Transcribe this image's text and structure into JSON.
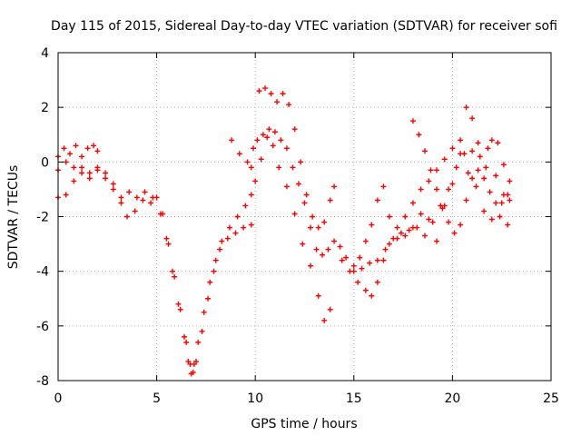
{
  "chart_data": {
    "type": "scatter",
    "title": "Day 115 of 2015, Sidereal Day-to-day VTEC variation (SDTVAR) for receiver sofi",
    "xlabel": "GPS time / hours",
    "ylabel": "SDTVAR / TECUs",
    "xlim": [
      0,
      25
    ],
    "ylim": [
      -8,
      4
    ],
    "xticks": [
      "0",
      "5",
      "10",
      "15",
      "20",
      "25"
    ],
    "yticks": [
      "4",
      "2",
      "0",
      "-2",
      "-4",
      "-6",
      "-8"
    ],
    "grid": true,
    "legend": "none",
    "marker": "+",
    "color": "#ff0000",
    "series": [
      {
        "points": [
          [
            0,
            0.2
          ],
          [
            0.3,
            0.5
          ],
          [
            0.6,
            0.3
          ],
          [
            0.9,
            0.6
          ],
          [
            1.2,
            0.2
          ],
          [
            1.5,
            0.5
          ],
          [
            1.8,
            0.6
          ],
          [
            2.0,
            0.4
          ]
        ]
      },
      {
        "points": [
          [
            0,
            -0.3
          ],
          [
            0.4,
            0.0
          ],
          [
            0.8,
            -0.2
          ],
          [
            1.2,
            -0.4
          ],
          [
            1.6,
            -0.6
          ],
          [
            2.0,
            -0.3
          ],
          [
            2.4,
            -0.6
          ],
          [
            2.8,
            -1.0
          ],
          [
            3.2,
            -1.3
          ],
          [
            3.6,
            -1.1
          ],
          [
            4.0,
            -1.3
          ],
          [
            4.4,
            -1.1
          ],
          [
            4.8,
            -1.3
          ],
          [
            5.2,
            -1.9
          ],
          [
            5.5,
            -2.8
          ],
          [
            5.8,
            -4.0
          ],
          [
            6.1,
            -5.2
          ],
          [
            6.4,
            -6.4
          ],
          [
            6.6,
            -7.3
          ],
          [
            6.75,
            -7.75
          ],
          [
            6.9,
            -7.4
          ],
          [
            7.1,
            -6.6
          ],
          [
            7.4,
            -5.5
          ],
          [
            7.7,
            -4.4
          ],
          [
            8.0,
            -3.6
          ],
          [
            8.3,
            -2.9
          ],
          [
            8.7,
            -2.4
          ],
          [
            9.1,
            -2.0
          ],
          [
            9.5,
            -1.6
          ],
          [
            9.8,
            -1.2
          ],
          [
            10.0,
            -0.7
          ],
          [
            10.3,
            0.1
          ],
          [
            10.6,
            0.9
          ],
          [
            10.9,
            0.6
          ],
          [
            11.2,
            -0.2
          ],
          [
            11.6,
            -0.9
          ],
          [
            12.0,
            -1.9
          ],
          [
            12.4,
            -3.0
          ],
          [
            12.8,
            -3.8
          ],
          [
            13.2,
            -4.9
          ],
          [
            13.5,
            -5.8
          ],
          [
            13.8,
            -5.4
          ]
        ]
      },
      {
        "points": [
          [
            0,
            -1.3
          ],
          [
            0.4,
            -1.2
          ],
          [
            0.8,
            -0.7
          ],
          [
            1.2,
            -0.2
          ],
          [
            1.6,
            -0.4
          ],
          [
            2.0,
            -0.2
          ],
          [
            2.4,
            -0.4
          ],
          [
            2.8,
            -0.8
          ],
          [
            3.2,
            -1.5
          ],
          [
            3.5,
            -2.0
          ],
          [
            3.9,
            -1.8
          ],
          [
            4.3,
            -1.4
          ],
          [
            4.7,
            -1.5
          ],
          [
            5.0,
            -1.3
          ],
          [
            5.3,
            -1.9
          ],
          [
            5.6,
            -3.0
          ],
          [
            5.9,
            -4.2
          ],
          [
            6.2,
            -5.4
          ],
          [
            6.5,
            -6.6
          ],
          [
            6.7,
            -7.4
          ],
          [
            6.85,
            -7.7
          ],
          [
            7.0,
            -7.3
          ],
          [
            7.3,
            -6.2
          ],
          [
            7.6,
            -5.0
          ],
          [
            7.9,
            -4.0
          ],
          [
            8.2,
            -3.2
          ],
          [
            8.6,
            -2.8
          ],
          [
            9.0,
            -2.6
          ],
          [
            9.4,
            -2.4
          ],
          [
            9.8,
            -2.3
          ]
        ]
      },
      {
        "points": [
          [
            8.8,
            0.8
          ],
          [
            9.2,
            0.3
          ],
          [
            9.6,
            0.0
          ],
          [
            9.9,
            0.5
          ],
          [
            10.2,
            2.6
          ],
          [
            10.5,
            2.7
          ],
          [
            10.8,
            2.5
          ],
          [
            11.1,
            2.2
          ],
          [
            11.4,
            2.5
          ],
          [
            11.7,
            2.1
          ],
          [
            12.0,
            1.2
          ],
          [
            12.3,
            0.0
          ],
          [
            12.6,
            -1.2
          ],
          [
            12.9,
            -2.0
          ],
          [
            13.2,
            -2.4
          ],
          [
            13.5,
            -2.2
          ],
          [
            13.8,
            -1.4
          ],
          [
            14.0,
            -0.9
          ]
        ]
      },
      {
        "points": [
          [
            9.8,
            -0.2
          ],
          [
            10.1,
            0.8
          ],
          [
            10.4,
            1.0
          ],
          [
            10.7,
            1.2
          ],
          [
            11.0,
            1.1
          ],
          [
            11.3,
            0.8
          ],
          [
            11.6,
            0.5
          ],
          [
            11.9,
            -0.2
          ],
          [
            12.2,
            -0.8
          ],
          [
            12.5,
            -1.5
          ],
          [
            12.8,
            -2.4
          ],
          [
            13.1,
            -3.2
          ],
          [
            13.4,
            -3.4
          ],
          [
            13.7,
            -3.2
          ],
          [
            14.0,
            -2.9
          ],
          [
            14.3,
            -3.1
          ],
          [
            14.6,
            -3.5
          ],
          [
            15.0,
            -3.8
          ],
          [
            15.4,
            -3.9
          ],
          [
            15.8,
            -3.7
          ],
          [
            16.2,
            -3.6
          ],
          [
            16.6,
            -3.2
          ],
          [
            17.0,
            -2.8
          ],
          [
            17.4,
            -2.6
          ],
          [
            17.8,
            -2.5
          ],
          [
            18.2,
            -2.4
          ],
          [
            18.6,
            -2.7
          ],
          [
            19.0,
            -2.2
          ],
          [
            19.4,
            -1.6
          ],
          [
            19.8,
            -1.0
          ],
          [
            20.2,
            -0.2
          ],
          [
            20.6,
            0.3
          ],
          [
            21.0,
            0.4
          ],
          [
            21.4,
            0.2
          ],
          [
            21.8,
            0.5
          ],
          [
            22.2,
            -0.5
          ],
          [
            22.6,
            -1.2
          ],
          [
            22.9,
            -1.4
          ]
        ]
      },
      {
        "points": [
          [
            14.4,
            -3.6
          ],
          [
            14.8,
            -4.0
          ],
          [
            15.2,
            -4.4
          ],
          [
            15.6,
            -4.7
          ],
          [
            15.9,
            -4.9
          ],
          [
            16.2,
            -4.4
          ],
          [
            16.5,
            -3.6
          ],
          [
            16.8,
            -3.0
          ],
          [
            17.2,
            -2.4
          ],
          [
            17.6,
            -2.0
          ],
          [
            18.0,
            -1.5
          ],
          [
            18.4,
            -1.0
          ],
          [
            18.8,
            -0.7
          ],
          [
            19.2,
            -0.3
          ],
          [
            19.6,
            0.1
          ],
          [
            20.0,
            0.5
          ],
          [
            20.4,
            0.3
          ],
          [
            20.8,
            -0.4
          ],
          [
            21.2,
            -0.9
          ],
          [
            21.6,
            -1.8
          ],
          [
            22.0,
            -2.1
          ],
          [
            22.4,
            -2.0
          ],
          [
            22.8,
            -2.3
          ]
        ]
      },
      {
        "points": [
          [
            15.0,
            -4.0
          ],
          [
            15.3,
            -3.5
          ],
          [
            15.6,
            -2.9
          ],
          [
            15.9,
            -2.3
          ],
          [
            16.2,
            -1.4
          ],
          [
            16.5,
            -0.9
          ],
          [
            16.8,
            -2.0
          ],
          [
            17.2,
            -2.8
          ],
          [
            17.6,
            -2.7
          ],
          [
            18.0,
            -2.4
          ],
          [
            18.4,
            -1.9
          ],
          [
            18.8,
            -2.1
          ],
          [
            19.2,
            -2.9
          ],
          [
            19.6,
            -1.6
          ],
          [
            20.0,
            -0.8
          ],
          [
            20.4,
            0.8
          ],
          [
            20.7,
            2.0
          ],
          [
            21.0,
            1.6
          ],
          [
            21.3,
            0.7
          ],
          [
            21.7,
            -0.2
          ],
          [
            22.0,
            0.8
          ],
          [
            22.3,
            0.7
          ],
          [
            22.6,
            -0.1
          ],
          [
            22.9,
            -0.7
          ]
        ]
      },
      {
        "points": [
          [
            18.0,
            1.5
          ],
          [
            18.3,
            1.0
          ],
          [
            18.6,
            0.4
          ],
          [
            18.9,
            -0.3
          ],
          [
            19.2,
            -1.0
          ],
          [
            19.5,
            -1.7
          ],
          [
            19.8,
            -2.2
          ],
          [
            20.1,
            -2.6
          ],
          [
            20.4,
            -2.3
          ],
          [
            20.7,
            -1.4
          ],
          [
            21.0,
            -0.6
          ],
          [
            21.3,
            -0.3
          ],
          [
            21.6,
            -0.6
          ],
          [
            21.9,
            -1.1
          ],
          [
            22.2,
            -1.5
          ],
          [
            22.5,
            -1.5
          ],
          [
            22.8,
            -1.2
          ]
        ]
      }
    ]
  }
}
